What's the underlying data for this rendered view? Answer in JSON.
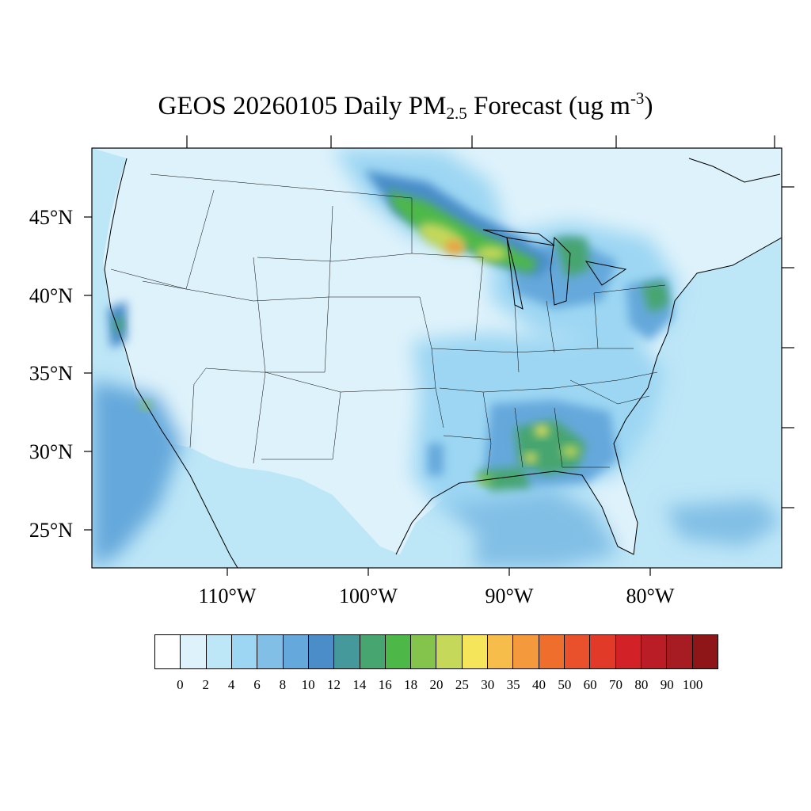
{
  "title": {
    "prefix": "GEOS 20260105 Daily PM",
    "subscript": "2.5",
    "middle": " Forecast (ug m",
    "superscript": "-3",
    "suffix": ")"
  },
  "map": {
    "projection": "lambert-conformal",
    "lat_axis_labels": [
      {
        "value": 45,
        "text": "45°N"
      },
      {
        "value": 40,
        "text": "40°N"
      },
      {
        "value": 35,
        "text": "35°N"
      },
      {
        "value": 30,
        "text": "30°N"
      },
      {
        "value": 25,
        "text": "25°N"
      }
    ],
    "lon_axis_labels": [
      {
        "value": -110,
        "text": "110°W"
      },
      {
        "value": -100,
        "text": "100°W"
      },
      {
        "value": -90,
        "text": "90°W"
      },
      {
        "value": -80,
        "text": "80°W"
      }
    ],
    "background_levels": "2-10 ug m-3 over most of the domain",
    "hotspots": [
      {
        "region": "Upper Midwest (Minnesota)",
        "level_ug_m3": 35,
        "color": "#f49a3c"
      },
      {
        "region": "Northern Wisconsin / Michigan",
        "level_ug_m3": 20,
        "color": "#84c44c"
      },
      {
        "region": "Alabama / Georgia",
        "level_ug_m3": 25,
        "color": "#f5e55a"
      },
      {
        "region": "Southern Louisiana",
        "level_ug_m3": 20,
        "color": "#84c44c"
      },
      {
        "region": "Northeast corridor",
        "level_ug_m3": 14,
        "color": "#47a570"
      },
      {
        "region": "Central California",
        "level_ug_m3": 12,
        "color": "#4a8dc9"
      },
      {
        "region": "Southern California coast",
        "level_ug_m3": 16,
        "color": "#4db848"
      }
    ]
  },
  "colorbar": {
    "colors": [
      "#ffffff",
      "#def2fb",
      "#bde6f7",
      "#9cd6f3",
      "#82bfe6",
      "#65a8db",
      "#4a8dc9",
      "#45999a",
      "#47a570",
      "#4db848",
      "#84c44c",
      "#c5d85a",
      "#f5e55a",
      "#f6bd4a",
      "#f49a3c",
      "#ef6e2c",
      "#e9502c",
      "#e13a28",
      "#d32128",
      "#bb1d26",
      "#a71b23",
      "#8e1619"
    ],
    "tick_labels": [
      "0",
      "2",
      "4",
      "6",
      "8",
      "10",
      "12",
      "14",
      "16",
      "18",
      "20",
      "25",
      "30",
      "35",
      "40",
      "50",
      "60",
      "70",
      "80",
      "90",
      "100"
    ]
  }
}
